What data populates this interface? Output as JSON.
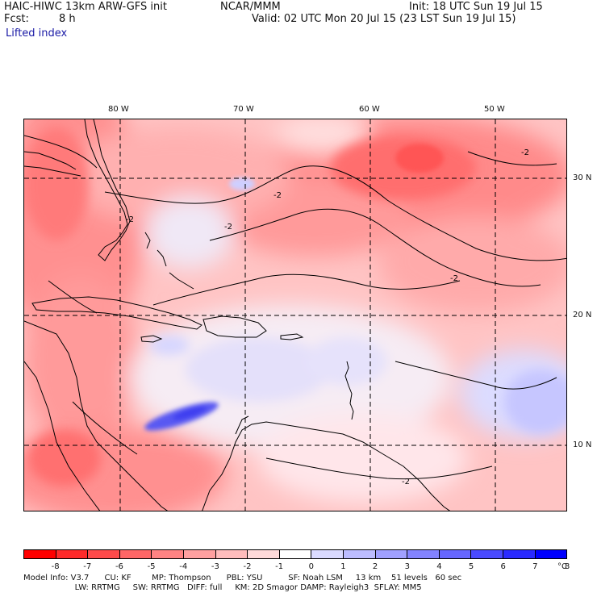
{
  "header": {
    "line1_left": "HAIC-HIWC 13km ARW-GFS init",
    "line1_center": "NCAR/MMM",
    "line1_right": "Init: 18 UTC Sun 19 Jul 15",
    "fcst_label": "Fcst:",
    "fcst_value": "8 h",
    "valid": "Valid: 02 UTC Mon 20 Jul 15 (23 LST Sun 19 Jul 15)",
    "field": "Lifted index"
  },
  "map": {
    "lon_labels": [
      "80 W",
      "70 W",
      "60 W",
      "50 W"
    ],
    "lat_labels": [
      "30 N",
      "20 N",
      "10 N"
    ],
    "contour_label": "-2"
  },
  "colorbar": {
    "labels": [
      "-8",
      "-7",
      "-6",
      "-5",
      "-4",
      "-3",
      "-2",
      "-1",
      "0",
      "1",
      "2",
      "3",
      "4",
      "5",
      "6",
      "7",
      "8"
    ],
    "unit": "°C",
    "colors": [
      "#ff0000",
      "#ff2a2a",
      "#ff4a4a",
      "#ff6666",
      "#ff8383",
      "#ffa0a0",
      "#ffbcbc",
      "#ffdada",
      "#ffffff",
      "#dadaff",
      "#bcbcff",
      "#a0a0ff",
      "#8383ff",
      "#6666ff",
      "#4a4aff",
      "#2a2aff",
      "#0000ff"
    ]
  },
  "footer": {
    "line1": "Model Info: V3.7      CU: KF        MP: Thompson      PBL: YSU          SF: Noah LSM     13 km    51 levels   60 sec",
    "line2": "                    LW: RRTMG     SW: RRTMG   DIFF: full     KM: 2D Smagor DAMP: Rayleigh3  SFLAY: MM5"
  }
}
